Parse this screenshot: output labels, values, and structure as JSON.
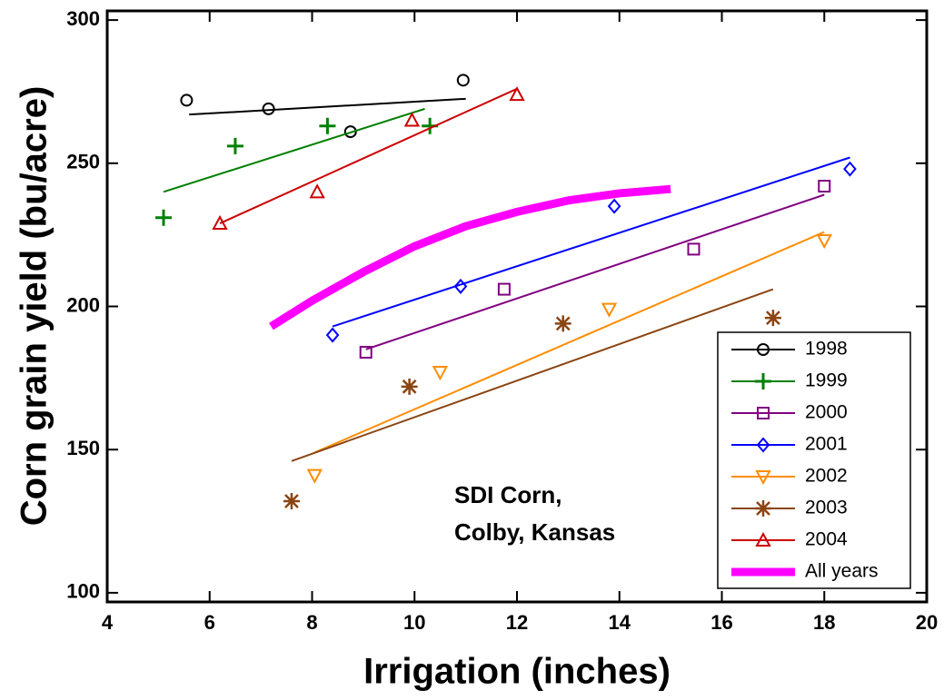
{
  "chart_data": {
    "type": "scatter",
    "xlabel": "Irrigation (inches)",
    "ylabel": "Corn grain yield (bu/acre)",
    "annotation": [
      "SDI Corn,",
      "Colby, Kansas"
    ],
    "xlim": [
      4,
      20
    ],
    "xticks": [
      4,
      6,
      8,
      10,
      12,
      14,
      16,
      18,
      20
    ],
    "ylim": [
      96.8,
      303.2
    ],
    "yticks": [
      100,
      150,
      200,
      250,
      300
    ],
    "legend": "lower right",
    "series": [
      {
        "name": "1998",
        "color": "#000000",
        "marker": "circle",
        "x": [
          5.55,
          7.15,
          8.75,
          10.95
        ],
        "values": [
          272,
          269,
          261,
          279
        ],
        "fit": {
          "x": [
            5.6,
            11
          ],
          "values": [
            267,
            272.5
          ]
        }
      },
      {
        "name": "1999",
        "color": "#008000",
        "marker": "plus",
        "x": [
          5.1,
          6.5,
          8.3,
          10.3
        ],
        "values": [
          231,
          256,
          263,
          263
        ],
        "fit": {
          "x": [
            5.1,
            10.2
          ],
          "values": [
            240,
            269
          ]
        }
      },
      {
        "name": "2000",
        "color": "#800080",
        "marker": "square",
        "x": [
          9.05,
          11.75,
          15.45,
          18
        ],
        "values": [
          184,
          206,
          220,
          242
        ],
        "fit": {
          "x": [
            9.05,
            18
          ],
          "values": [
            185,
            239
          ]
        }
      },
      {
        "name": "2001",
        "color": "#0000ff",
        "marker": "diamond",
        "x": [
          8.4,
          10.9,
          13.9,
          18.5
        ],
        "values": [
          190,
          207,
          235,
          248
        ],
        "fit": {
          "x": [
            8.4,
            18.5
          ],
          "values": [
            193,
            252
          ]
        }
      },
      {
        "name": "2002",
        "color": "#ff8c00",
        "marker": "triangle-down",
        "x": [
          8.05,
          10.5,
          13.8,
          18
        ],
        "values": [
          141,
          177,
          199,
          223
        ],
        "fit": {
          "x": [
            8.05,
            18
          ],
          "values": [
            149,
            226
          ]
        }
      },
      {
        "name": "2003",
        "color": "#8b4513",
        "marker": "asterisk",
        "x": [
          7.6,
          9.9,
          12.9,
          17
        ],
        "values": [
          132,
          172,
          194,
          196
        ],
        "fit": {
          "x": [
            7.6,
            17
          ],
          "values": [
            146,
            206
          ]
        }
      },
      {
        "name": "2004",
        "color": "#cc0000",
        "marker": "triangle-up",
        "x": [
          6.2,
          8.1,
          9.95,
          12
        ],
        "values": [
          229,
          240,
          265,
          274
        ],
        "fit": {
          "x": [
            6.2,
            12
          ],
          "values": [
            229,
            276
          ]
        }
      },
      {
        "name": "All years",
        "color": "#ff00ff",
        "marker": "none",
        "line_width": 9,
        "x": [
          7.2,
          8,
          9,
          10,
          11,
          12,
          13,
          14,
          15
        ],
        "values": [
          193,
          202,
          212,
          221,
          228,
          233,
          237,
          239.5,
          241
        ]
      }
    ]
  }
}
